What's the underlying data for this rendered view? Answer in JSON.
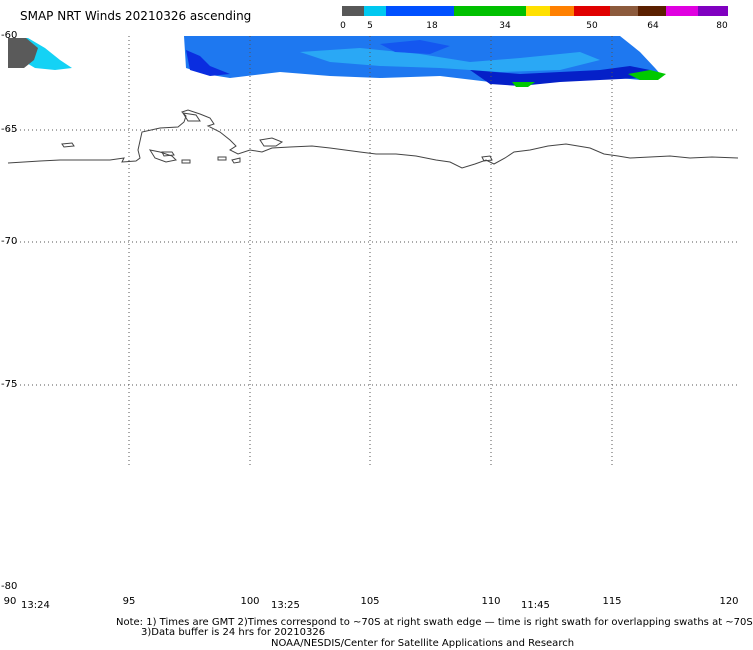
{
  "title": "SMAP NRT Winds 20210326 ascending",
  "colorbar": {
    "segments": [
      "#585858",
      "#00c8f0",
      "#0050ff",
      "#00c000",
      "#ffe000",
      "#ff8000",
      "#e00000",
      "#8c5a3c",
      "#5a2000",
      "#e000e0",
      "#8000c0"
    ],
    "labels": [
      "0",
      "5",
      "18",
      "34",
      "50",
      "64",
      "80"
    ]
  },
  "lat_labels": [
    "-60",
    "-65",
    "-70",
    "-75",
    "-80"
  ],
  "lon_labels": [
    "90",
    "95",
    "100",
    "105",
    "110",
    "115",
    "120"
  ],
  "time_labels": [
    "13:24",
    "13:25",
    "11:45"
  ],
  "notes": {
    "line1": "Note: 1) Times are GMT 2)Times correspond to ~70S at right swath edge — time is right swath for overlapping swaths at ~70S",
    "line2": "3)Data buffer is 24 hrs for 20210326",
    "line3": "NOAA/NESDIS/Center for Satellite Applications and Research"
  }
}
